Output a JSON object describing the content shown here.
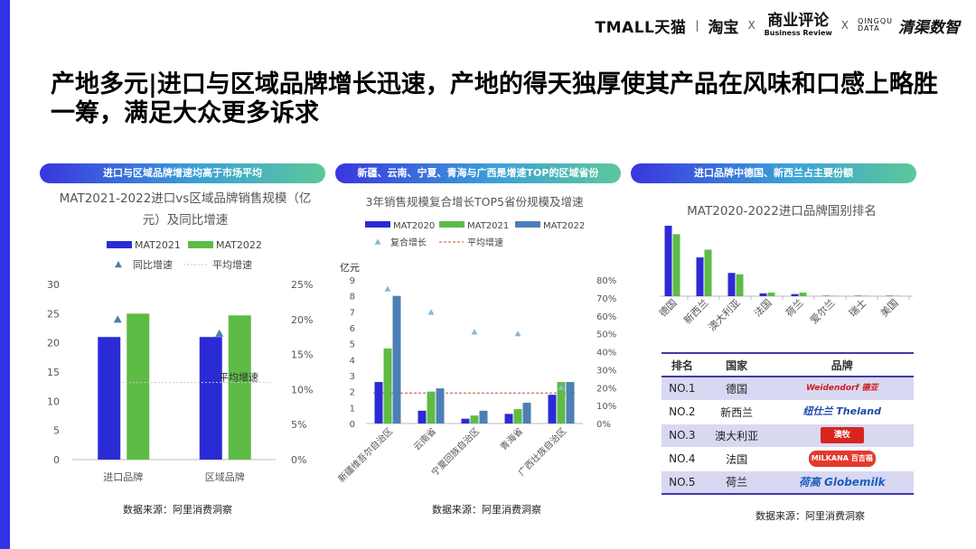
{
  "header": {
    "logo_tmall": "TMALL天猫",
    "logo_taobao": "淘宝",
    "sep": "X",
    "logo_br_cn": "商业评论",
    "logo_br_en": "Business Review",
    "logo_qd_en_1": "QINGQU",
    "logo_qd_en_2": "DATA",
    "logo_qd_cn": "清渠数智"
  },
  "page_title": "产地多元|进口与区域品牌增长迅速，产地的得天独厚使其产品在风味和口感上略胜一筹，满足大众更多诉求",
  "pills": {
    "p1": "进口与区域品牌增速均高于市场平均",
    "p2": "新疆、云南、宁夏、青海与广西是增速TOP的区域省份",
    "p3": "进口品牌中德国、新西兰占主要份额"
  },
  "colors": {
    "blue": "#2b2bd6",
    "green": "#5dbb46",
    "steel": "#4c7fb5",
    "marker": "#4a7fb0",
    "avg_line_1": "#c7c7c7",
    "avg_line_2": "#d6453a",
    "table_stripe": "#d9d8f3",
    "table_border": "#3e3aa8"
  },
  "sources": {
    "s1": "数据来源：阿里消费洞察",
    "s2": "数据来源：阿里消费洞察",
    "s3": "数据来源：阿里消费洞察"
  },
  "chart_data": [
    {
      "type": "bar",
      "title": "MAT2021-2022进口vs区域品牌销售规模（亿元）及同比增速",
      "categories": [
        "进口品牌",
        "区域品牌"
      ],
      "series": [
        {
          "name": "MAT2021",
          "values": [
            21,
            21
          ]
        },
        {
          "name": "MAT2022",
          "values": [
            25,
            24.7
          ]
        }
      ],
      "overlay_series": [
        {
          "name": "同比增速",
          "values": [
            0.2,
            0.18
          ],
          "marker": "triangle"
        },
        {
          "name": "平均增速",
          "value": 0.11,
          "style": "dotted-line",
          "annotation": "平均增速"
        }
      ],
      "y_ticks": [
        "0",
        "5",
        "10",
        "15",
        "20",
        "25",
        "30"
      ],
      "y2_ticks": [
        "0%",
        "5%",
        "10%",
        "15%",
        "20%",
        "25%"
      ],
      "ylim": [
        0,
        30
      ],
      "y2lim": [
        0,
        0.25
      ],
      "legend": "top",
      "grid": false
    },
    {
      "type": "bar",
      "title": "3年销售规模复合增长TOP5省份规模及增速",
      "ylabel": "亿元",
      "categories": [
        "新疆维吾尔自治区",
        "云南省",
        "宁夏回族自治区",
        "青海省",
        "广西壮族自治区"
      ],
      "series": [
        {
          "name": "MAT2020",
          "values": [
            2.6,
            0.8,
            0.3,
            0.6,
            1.8
          ]
        },
        {
          "name": "MAT2021",
          "values": [
            4.7,
            2.0,
            0.5,
            0.9,
            2.6
          ]
        },
        {
          "name": "MAT2022",
          "values": [
            8.0,
            2.2,
            0.8,
            1.3,
            2.6
          ]
        }
      ],
      "overlay_series": [
        {
          "name": "复合增长",
          "values": [
            0.75,
            0.62,
            0.51,
            0.5,
            0.2
          ],
          "marker": "triangle"
        },
        {
          "name": "平均增速",
          "value": 0.17,
          "style": "dashed-line"
        }
      ],
      "y_ticks": [
        "0",
        "1",
        "2",
        "3",
        "4",
        "5",
        "6",
        "7",
        "8",
        "9"
      ],
      "y2_ticks": [
        "0%",
        "10%",
        "20%",
        "30%",
        "40%",
        "50%",
        "60%",
        "70%",
        "80%"
      ],
      "ylim": [
        0,
        9
      ],
      "y2lim": [
        0,
        0.8
      ],
      "legend": "top",
      "grid": false
    },
    {
      "type": "bar",
      "title": "MAT2020-2022进口品牌国别排名",
      "categories": [
        "德国",
        "新西兰",
        "澳大利亚",
        "法国",
        "荷兰",
        "爱尔兰",
        "瑞士",
        "美国"
      ],
      "series": [
        {
          "values": [
            100,
            55,
            33,
            4,
            3,
            0.5,
            0.3,
            0.2
          ]
        },
        {
          "values": [
            88,
            66,
            31,
            5,
            5,
            0.5,
            0.3,
            0.2
          ]
        }
      ],
      "legend": "none",
      "grid": false
    }
  ],
  "rank_table": {
    "headers": [
      "排名",
      "国家",
      "品牌"
    ],
    "rows": [
      {
        "rank": "NO.1",
        "country": "德国",
        "brand": "Weidendorf 德亚"
      },
      {
        "rank": "NO.2",
        "country": "新西兰",
        "brand": "纽仕兰 Theland"
      },
      {
        "rank": "NO.3",
        "country": "澳大利亚",
        "brand": "澳牧"
      },
      {
        "rank": "NO.4",
        "country": "法国",
        "brand": "MILKANA 百吉福"
      },
      {
        "rank": "NO.5",
        "country": "荷兰",
        "brand": "荷高 Globemilk"
      }
    ]
  }
}
